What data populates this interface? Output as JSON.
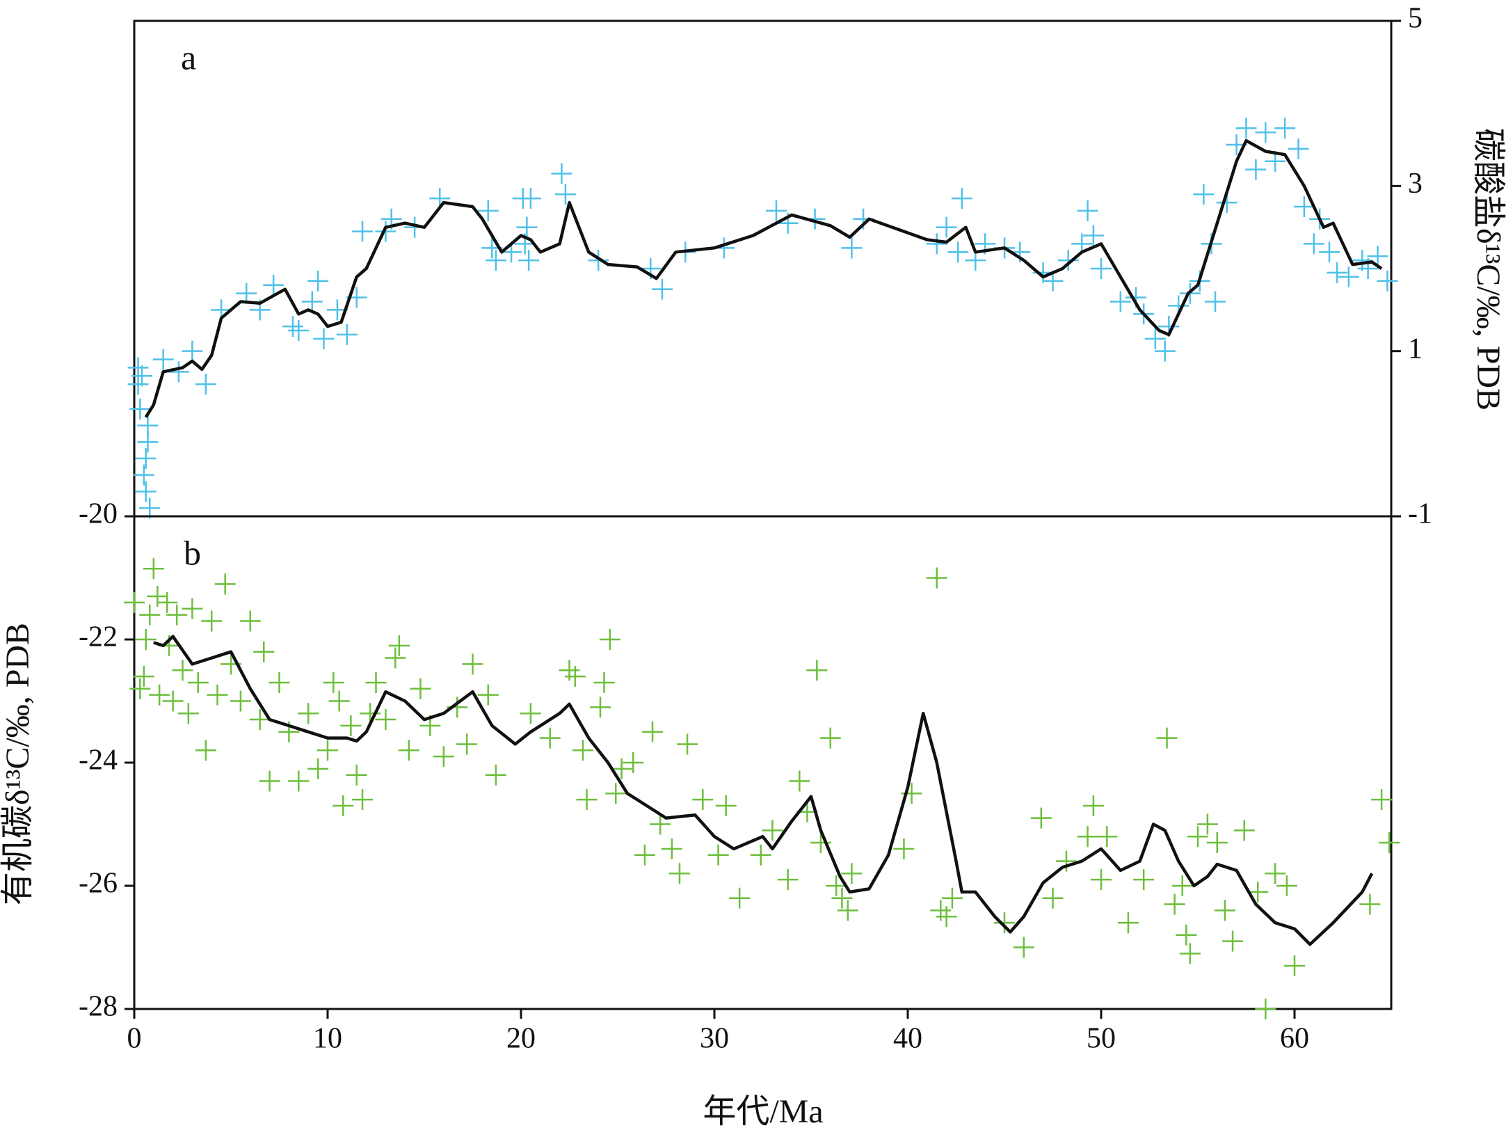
{
  "chart_data": [
    {
      "type": "scatter",
      "annotation": "a",
      "ylabel": "碳酸盐δ¹³C/‰, PDB",
      "yaxis_side": "right",
      "xlim": [
        0,
        65
      ],
      "ylim": [
        -1,
        5
      ],
      "yticks": [
        -1,
        1,
        3,
        5
      ],
      "series": [
        {
          "type": "scatter",
          "color": "#4fc1e9",
          "x": [
            0.2,
            0.2,
            0.3,
            0.4,
            0.5,
            0.6,
            0.6,
            0.7,
            0.8,
            0.7,
            1.5,
            2.3,
            3,
            3.7,
            4.5,
            5.8,
            6.5,
            7.2,
            8.2,
            8.5,
            9.2,
            9.5,
            9.8,
            10.5,
            11,
            11.5,
            11.8,
            13,
            13.3,
            14.5,
            15.8,
            18.3,
            18.5,
            18.7,
            19.5,
            20.1,
            20.3,
            20.4,
            20.5,
            20.2,
            22.1,
            22.3,
            24,
            26.7,
            27.3,
            28.5,
            30.5,
            33.2,
            33.8,
            35.2,
            37.1,
            37.7,
            41.5,
            42,
            42.6,
            42.8,
            43.5,
            44,
            45,
            45.8,
            47,
            47.5,
            48.3,
            49,
            49.3,
            49.6,
            50,
            51,
            51.8,
            52.2,
            52.8,
            53.3,
            53.5,
            54,
            54.6,
            55.1,
            55.3,
            55.7,
            55.9,
            56.5,
            57,
            57.5,
            58,
            58.5,
            59,
            59.5,
            60.2,
            60.5,
            61,
            61.3,
            61.8,
            62.2,
            62.8,
            63.5,
            63.8,
            64.3,
            64.8
          ],
          "values": [
            0.8,
            0.6,
            0.3,
            0.7,
            -0.5,
            -0.7,
            -0.3,
            -0.1,
            -0.9,
            0.1,
            0.9,
            0.75,
            1.0,
            0.6,
            1.5,
            1.7,
            1.5,
            1.8,
            1.3,
            1.25,
            1.6,
            1.85,
            1.15,
            1.5,
            1.2,
            1.65,
            2.45,
            2.45,
            2.6,
            2.5,
            2.85,
            2.7,
            2.25,
            2.1,
            2.2,
            2.85,
            2.5,
            2.1,
            2.85,
            2.3,
            3.15,
            2.9,
            2.1,
            2.0,
            1.75,
            2.2,
            2.25,
            2.7,
            2.55,
            2.6,
            2.25,
            2.6,
            2.3,
            2.5,
            2.2,
            2.85,
            2.1,
            2.3,
            2.25,
            2.2,
            1.95,
            1.85,
            2.1,
            2.3,
            2.7,
            2.4,
            2.0,
            1.6,
            1.65,
            1.45,
            1.15,
            1.0,
            1.3,
            1.55,
            1.7,
            1.85,
            2.9,
            2.3,
            1.6,
            2.8,
            3.5,
            3.7,
            3.2,
            3.65,
            3.3,
            3.7,
            3.45,
            2.75,
            2.3,
            2.6,
            2.2,
            1.95,
            1.9,
            2.1,
            2.0,
            2.15,
            1.85
          ]
        },
        {
          "type": "line",
          "color": "#111111",
          "x": [
            0.6,
            1,
            1.5,
            2.5,
            3,
            3.5,
            4,
            4.5,
            5.5,
            6.5,
            7.8,
            8.5,
            9,
            9.5,
            10,
            10.7,
            11.5,
            12,
            13,
            14,
            15,
            16,
            17.5,
            18,
            19,
            20,
            20.5,
            21,
            22,
            22.5,
            23.5,
            24.5,
            26,
            27,
            28,
            30,
            32,
            34,
            36,
            37,
            38,
            41,
            42,
            43,
            43.5,
            45,
            46,
            47,
            48,
            49,
            50,
            51,
            52,
            53,
            53.5,
            54.5,
            55,
            56,
            57,
            57.5,
            58.5,
            59.5,
            60.5,
            61.5,
            62,
            63,
            64,
            64.5
          ],
          "values": [
            0.2,
            0.35,
            0.75,
            0.8,
            0.88,
            0.78,
            0.95,
            1.4,
            1.6,
            1.58,
            1.75,
            1.45,
            1.5,
            1.45,
            1.3,
            1.35,
            1.9,
            2.0,
            2.5,
            2.55,
            2.5,
            2.8,
            2.75,
            2.6,
            2.2,
            2.4,
            2.35,
            2.2,
            2.3,
            2.8,
            2.2,
            2.05,
            2.02,
            1.88,
            2.2,
            2.25,
            2.4,
            2.65,
            2.52,
            2.38,
            2.6,
            2.35,
            2.32,
            2.5,
            2.2,
            2.25,
            2.1,
            1.9,
            2.0,
            2.2,
            2.3,
            1.9,
            1.5,
            1.25,
            1.2,
            1.7,
            1.8,
            2.55,
            3.3,
            3.55,
            3.42,
            3.38,
            3.0,
            2.5,
            2.55,
            2.05,
            2.08,
            2.0
          ]
        }
      ]
    },
    {
      "type": "scatter",
      "annotation": "b",
      "ylabel": "有机碳δ¹³C/‰, PDB",
      "yaxis_side": "left",
      "xlabel": "年代/Ma",
      "xlim": [
        0,
        65
      ],
      "xticks": [
        0,
        10,
        20,
        30,
        40,
        50,
        60
      ],
      "ylim": [
        -28,
        -20
      ],
      "yticks": [
        -28,
        -26,
        -24,
        -22,
        -20
      ],
      "series": [
        {
          "type": "scatter",
          "color": "#6cbf3b",
          "x": [
            0,
            0.3,
            0.5,
            0.6,
            0.8,
            1.0,
            1.2,
            1.3,
            1.7,
            1.8,
            2.0,
            2.2,
            2.5,
            2.8,
            3.0,
            3.3,
            3.7,
            4.0,
            4.3,
            4.7,
            5.0,
            5.5,
            6.0,
            6.5,
            6.7,
            7.0,
            7.5,
            8.0,
            8.5,
            9.0,
            9.5,
            10.0,
            10.3,
            10.6,
            10.8,
            11.2,
            11.5,
            11.8,
            12.2,
            12.5,
            13.0,
            13.5,
            13.7,
            14.2,
            14.8,
            15.3,
            16.0,
            16.7,
            17.2,
            17.5,
            18.3,
            18.7,
            20.5,
            21.5,
            22.5,
            22.8,
            23.2,
            24.1,
            24.3,
            24.6,
            24.9,
            25.2,
            23.4,
            25.8,
            26.4,
            26.8,
            27.2,
            27.8,
            28.2,
            28.6,
            29.4,
            30.2,
            30.6,
            31.3,
            32.4,
            33.0,
            33.8,
            34.4,
            34.8,
            35.3,
            35.5,
            36.0,
            36.3,
            36.6,
            36.9,
            37.1,
            39.8,
            40.2,
            41.5,
            41.7,
            42.0,
            42.3,
            45.0,
            46.0,
            46.9,
            47.5,
            48.2,
            49.3,
            49.6,
            50.0,
            50.3,
            51.4,
            52.2,
            53.4,
            53.8,
            54.2,
            54.4,
            54.6,
            55.0,
            55.5,
            56.0,
            56.4,
            56.8,
            57.4,
            58.1,
            58.5,
            59.0,
            59.6,
            60.0,
            63.9,
            64.5,
            64.9
          ],
          "values": [
            -21.4,
            -22.8,
            -22.6,
            -22.0,
            -21.6,
            -20.85,
            -21.3,
            -22.9,
            -21.4,
            -22.1,
            -23.0,
            -21.6,
            -22.5,
            -23.2,
            -21.5,
            -22.7,
            -23.8,
            -21.7,
            -22.9,
            -21.1,
            -22.4,
            -23.0,
            -21.7,
            -23.3,
            -22.2,
            -24.3,
            -22.7,
            -23.5,
            -24.3,
            -23.2,
            -24.1,
            -23.8,
            -22.7,
            -23.0,
            -24.7,
            -23.4,
            -24.2,
            -24.6,
            -23.2,
            -22.7,
            -23.3,
            -22.3,
            -22.1,
            -23.8,
            -22.8,
            -23.4,
            -23.9,
            -23.1,
            -23.7,
            -22.4,
            -22.9,
            -24.2,
            -23.2,
            -23.6,
            -22.5,
            -22.6,
            -23.8,
            -23.1,
            -22.7,
            -22.0,
            -24.5,
            -24.1,
            -24.6,
            -24.0,
            -25.5,
            -23.5,
            -25.0,
            -25.4,
            -25.8,
            -23.7,
            -24.6,
            -25.5,
            -24.7,
            -26.2,
            -25.5,
            -25.1,
            -25.9,
            -24.3,
            -24.8,
            -22.5,
            -25.3,
            -23.6,
            -26.0,
            -26.2,
            -26.4,
            -25.8,
            -25.4,
            -24.5,
            -21.0,
            -26.4,
            -26.5,
            -26.2,
            -26.6,
            -27.0,
            -24.9,
            -26.2,
            -25.6,
            -25.2,
            -24.7,
            -25.9,
            -25.2,
            -26.6,
            -25.9,
            -23.6,
            -26.3,
            -26.0,
            -26.8,
            -27.1,
            -25.2,
            -25.0,
            -25.3,
            -26.4,
            -26.9,
            -25.1,
            -26.1,
            -28.0,
            -25.8,
            -26.0,
            -27.3,
            -26.3,
            -24.6,
            -25.3
          ]
        },
        {
          "type": "line",
          "color": "#111111",
          "x": [
            1,
            1.5,
            2,
            3,
            4,
            5,
            6,
            7,
            8,
            9,
            10,
            11,
            11.5,
            12,
            13,
            14,
            15,
            16,
            17.5,
            18.5,
            19.7,
            20.5,
            22,
            22.5,
            23.5,
            24.5,
            25.5,
            26.5,
            27.5,
            29,
            30,
            31,
            32.5,
            33,
            34,
            35,
            35.5,
            36.5,
            37,
            38,
            39,
            40,
            40.8,
            41.5,
            42.5,
            42.8,
            43.5,
            44.5,
            45.3,
            46,
            47,
            48,
            49,
            50,
            51,
            52,
            52.7,
            53.3,
            54,
            54.8,
            55.5,
            56,
            57,
            58,
            59,
            60,
            60.8,
            62,
            63.5,
            64
          ],
          "values": [
            -22.05,
            -22.1,
            -21.95,
            -22.4,
            -22.3,
            -22.2,
            -22.8,
            -23.3,
            -23.4,
            -23.5,
            -23.6,
            -23.6,
            -23.65,
            -23.5,
            -22.85,
            -23.0,
            -23.3,
            -23.2,
            -22.85,
            -23.4,
            -23.7,
            -23.5,
            -23.2,
            -23.05,
            -23.6,
            -24.0,
            -24.5,
            -24.7,
            -24.9,
            -24.85,
            -25.2,
            -25.4,
            -25.2,
            -25.4,
            -24.95,
            -24.55,
            -25.1,
            -25.85,
            -26.1,
            -26.05,
            -25.5,
            -24.4,
            -23.2,
            -24.0,
            -25.6,
            -26.1,
            -26.1,
            -26.5,
            -26.75,
            -26.5,
            -25.95,
            -25.7,
            -25.6,
            -25.4,
            -25.75,
            -25.6,
            -25.0,
            -25.1,
            -25.6,
            -26.0,
            -25.85,
            -25.65,
            -25.75,
            -26.3,
            -26.6,
            -26.7,
            -26.95,
            -26.6,
            -26.1,
            -25.8
          ]
        }
      ]
    }
  ]
}
